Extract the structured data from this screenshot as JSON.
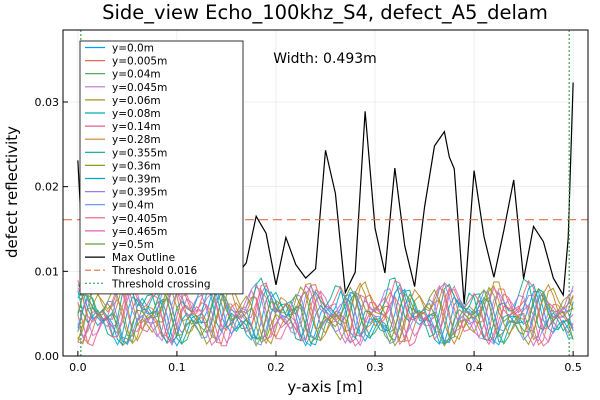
{
  "chart_data": {
    "type": "line",
    "title": "Side_view Echo_100khz_S4, defect_A5_delam",
    "xlabel": "y-axis [m]",
    "ylabel": "defect reflectivity",
    "xlim": [
      -0.015,
      0.515
    ],
    "ylim": [
      0,
      0.0385
    ],
    "xticks": [
      0.0,
      0.1,
      0.2,
      0.3,
      0.4,
      0.5
    ],
    "xtick_labels": [
      "0.0",
      "0.1",
      "0.2",
      "0.3",
      "0.4",
      "0.5"
    ],
    "yticks": [
      0.0,
      0.01,
      0.02,
      0.03
    ],
    "ytick_labels": [
      "0.00",
      "0.01",
      "0.02",
      "0.03"
    ],
    "grid": true,
    "legend_position": "top-left",
    "annotation": "Width: 0.493m",
    "threshold": {
      "name": "Threshold 0.016",
      "value": 0.0161,
      "color": "#e26f46"
    },
    "threshold_crossing": {
      "name": "Threshold crossing",
      "x": [
        0.003,
        0.496
      ],
      "color": "#3da44d"
    },
    "max_outline": {
      "name": "Max Outline",
      "color": "#000000",
      "x": [
        0.0,
        0.005,
        0.01,
        0.02,
        0.03,
        0.04,
        0.05,
        0.06,
        0.07,
        0.08,
        0.09,
        0.1,
        0.11,
        0.12,
        0.13,
        0.14,
        0.15,
        0.16,
        0.17,
        0.18,
        0.19,
        0.2,
        0.21,
        0.22,
        0.23,
        0.24,
        0.25,
        0.26,
        0.27,
        0.28,
        0.29,
        0.3,
        0.31,
        0.32,
        0.33,
        0.34,
        0.35,
        0.36,
        0.37,
        0.375,
        0.38,
        0.39,
        0.4,
        0.41,
        0.42,
        0.43,
        0.44,
        0.45,
        0.46,
        0.47,
        0.48,
        0.49,
        0.495,
        0.5
      ],
      "y": [
        0.0231,
        0.012,
        0.0148,
        0.0101,
        0.0107,
        0.0126,
        0.0124,
        0.0138,
        0.0106,
        0.0134,
        0.0093,
        0.0094,
        0.0093,
        0.0088,
        0.0142,
        0.011,
        0.0137,
        0.0095,
        0.011,
        0.0165,
        0.0145,
        0.0084,
        0.014,
        0.0108,
        0.0092,
        0.0103,
        0.0243,
        0.0192,
        0.0075,
        0.0099,
        0.0289,
        0.0151,
        0.0098,
        0.0222,
        0.013,
        0.0082,
        0.0176,
        0.0248,
        0.0265,
        0.0235,
        0.0221,
        0.0061,
        0.0219,
        0.0141,
        0.0093,
        0.0148,
        0.0208,
        0.0091,
        0.0153,
        0.0135,
        0.0092,
        0.0072,
        0.0139,
        0.0323
      ]
    },
    "series": [
      {
        "name": "y=0.0m",
        "color": "#009afa",
        "base": 0.0045,
        "amp": 0.0035,
        "ph": 0.3
      },
      {
        "name": "y=0.005m",
        "color": "#e36f47",
        "base": 0.005,
        "amp": 0.0038,
        "ph": 1.1
      },
      {
        "name": "y=0.04m",
        "color": "#3ea44e",
        "base": 0.0042,
        "amp": 0.0034,
        "ph": 2.0
      },
      {
        "name": "y=0.045m",
        "color": "#c371d2",
        "base": 0.0048,
        "amp": 0.0036,
        "ph": 2.7
      },
      {
        "name": "y=0.06m",
        "color": "#ac8e18",
        "base": 0.0052,
        "amp": 0.0039,
        "ph": 3.5
      },
      {
        "name": "y=0.08m",
        "color": "#00aaae",
        "base": 0.0046,
        "amp": 0.0035,
        "ph": 4.2
      },
      {
        "name": "y=0.14m",
        "color": "#ed5e93",
        "base": 0.0044,
        "amp": 0.0037,
        "ph": 5.0
      },
      {
        "name": "y=0.28m",
        "color": "#c68225",
        "base": 0.005,
        "amp": 0.0036,
        "ph": 5.8
      },
      {
        "name": "y=0.355m",
        "color": "#00a98d",
        "base": 0.0055,
        "amp": 0.004,
        "ph": 0.7
      },
      {
        "name": "y=0.36m",
        "color": "#8e971e",
        "base": 0.0047,
        "amp": 0.0035,
        "ph": 1.6
      },
      {
        "name": "y=0.39m",
        "color": "#00a9cd",
        "base": 0.0049,
        "amp": 0.0037,
        "ph": 2.4
      },
      {
        "name": "y=0.395m",
        "color": "#9b7fe8",
        "base": 0.0051,
        "amp": 0.0036,
        "ph": 3.1
      },
      {
        "name": "y=0.4m",
        "color": "#618df6",
        "base": 0.0045,
        "amp": 0.0034,
        "ph": 3.9
      },
      {
        "name": "y=0.405m",
        "color": "#f05f73",
        "base": 0.0053,
        "amp": 0.0038,
        "ph": 4.6
      },
      {
        "name": "y=0.465m",
        "color": "#dd64b5",
        "base": 0.0048,
        "amp": 0.0036,
        "ph": 5.4
      },
      {
        "name": "y=0.5m",
        "color": "#6b9e32",
        "base": 0.0046,
        "amp": 0.0035,
        "ph": 6.1
      }
    ]
  }
}
